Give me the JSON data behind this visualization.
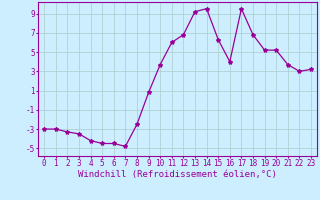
{
  "x": [
    0,
    1,
    2,
    3,
    4,
    5,
    6,
    7,
    8,
    9,
    10,
    11,
    12,
    13,
    14,
    15,
    16,
    17,
    18,
    19,
    20,
    21,
    22,
    23
  ],
  "y": [
    -3,
    -3,
    -3.3,
    -3.5,
    -4.2,
    -4.5,
    -4.5,
    -4.8,
    -2.5,
    0.8,
    3.7,
    6,
    6.8,
    9.2,
    9.5,
    6.3,
    4,
    9.5,
    6.8,
    5.2,
    5.2,
    3.7,
    3.0,
    3.2
  ],
  "line_color": "#990099",
  "marker": "*",
  "marker_size": 3,
  "bg_color": "#cceeff",
  "grid_color": "#aacccc",
  "xlabel": "Windchill (Refroidissement éolien,°C)",
  "xlim": [
    -0.5,
    23.5
  ],
  "ylim": [
    -5.8,
    10.2
  ],
  "yticks": [
    -5,
    -3,
    -1,
    1,
    3,
    5,
    7,
    9
  ],
  "xtick_labels": [
    "0",
    "1",
    "2",
    "3",
    "4",
    "5",
    "6",
    "7",
    "8",
    "9",
    "10",
    "11",
    "12",
    "13",
    "14",
    "15",
    "16",
    "17",
    "18",
    "19",
    "20",
    "21",
    "22",
    "23"
  ],
  "tick_fontsize": 5.5,
  "label_fontsize": 6.5,
  "label_color": "#990099",
  "tick_color": "#990099",
  "border_color": "#990099",
  "line_width": 0.9
}
